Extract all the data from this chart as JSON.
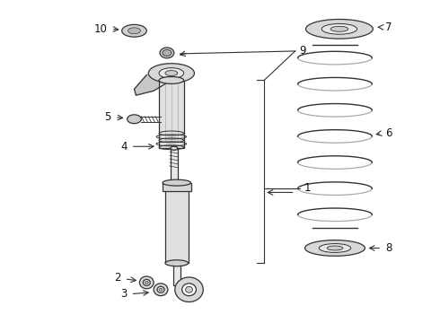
{
  "bg_color": "#ffffff",
  "fig_width": 4.9,
  "fig_height": 3.6,
  "dpi": 100,
  "line_color": "#333333",
  "label_color": "#111111",
  "part_fill": "#e8e8e8",
  "part_edge": "#333333",
  "label_fontsize": 8.5
}
